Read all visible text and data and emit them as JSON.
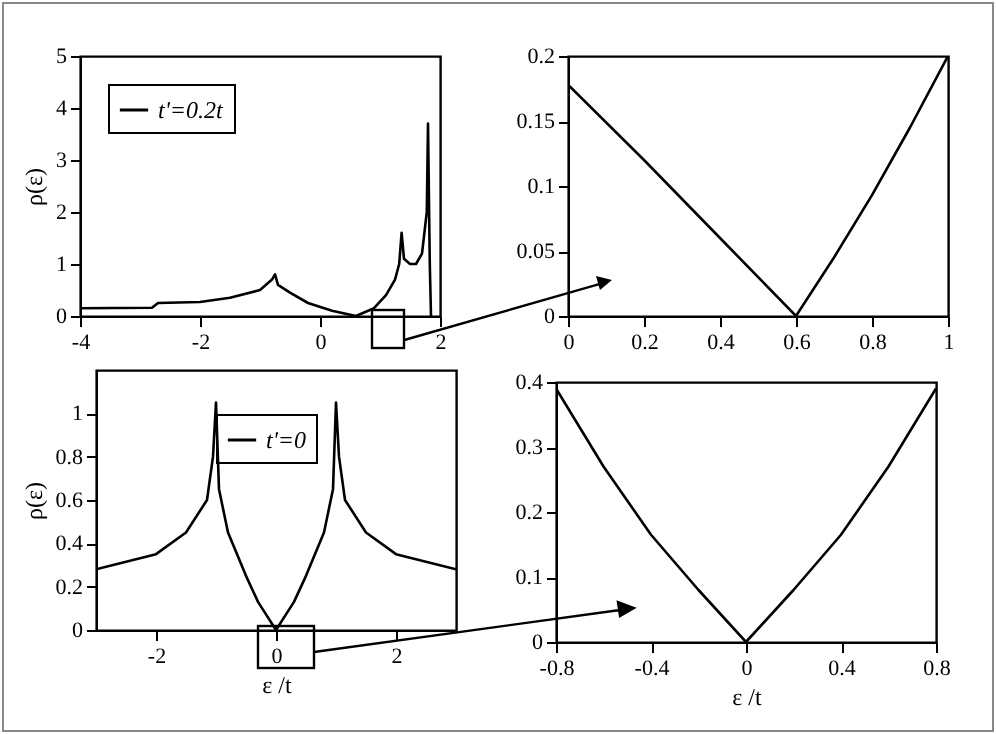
{
  "chart_data": [
    {
      "type": "line",
      "ylabel": "ρ(ε)",
      "xlim": [
        -4,
        2
      ],
      "xticks": [
        -4,
        -2,
        0,
        2
      ],
      "ylim": [
        0,
        5
      ],
      "yticks": [
        0,
        1,
        2,
        3,
        4,
        5
      ],
      "legend": "top left",
      "series": [
        {
          "name": "t'=0.2t",
          "color": "#000000",
          "x": [
            -4,
            -2.8,
            -2.7,
            -2,
            -1.5,
            -1,
            -0.8,
            -0.75,
            -0.7,
            -0.5,
            -0.2,
            0.2,
            0.6,
            0.9,
            1.1,
            1.25,
            1.32,
            1.36,
            1.4,
            1.5,
            1.6,
            1.7,
            1.78,
            1.8,
            1.83,
            1.85
          ],
          "values": [
            0.15,
            0.16,
            0.25,
            0.27,
            0.35,
            0.5,
            0.7,
            0.8,
            0.6,
            0.45,
            0.25,
            0.1,
            0,
            0.15,
            0.4,
            0.7,
            1.0,
            1.6,
            1.1,
            1.0,
            1.0,
            1.2,
            2.0,
            3.7,
            1.0,
            0
          ]
        }
      ]
    },
    {
      "type": "line",
      "xlim": [
        0,
        1
      ],
      "xticks": [
        0,
        0.2,
        0.4,
        0.6,
        0.8,
        1
      ],
      "ylim": [
        0,
        0.2
      ],
      "yticks": [
        0,
        0.05,
        0.1,
        0.15,
        0.2
      ],
      "series": [
        {
          "color": "#000000",
          "x": [
            0,
            0.2,
            0.4,
            0.6,
            0.7,
            0.8,
            0.9,
            1
          ],
          "values": [
            0.178,
            0.12,
            0.06,
            0,
            0.045,
            0.093,
            0.145,
            0.2
          ]
        }
      ]
    },
    {
      "type": "line",
      "xlabel": "ε /t",
      "ylabel": "ρ(ε)",
      "xlim": [
        -3,
        3
      ],
      "xticks": [
        -2,
        0,
        2
      ],
      "ylim": [
        0,
        1.2
      ],
      "yticks": [
        0,
        0.2,
        0.4,
        0.6,
        0.8,
        1
      ],
      "legend": "top",
      "series": [
        {
          "name": "t'=0",
          "color": "#000000",
          "x": [
            -3,
            -2,
            -1.5,
            -1.15,
            -1.05,
            -1,
            -0.95,
            -0.8,
            -0.5,
            -0.3,
            0,
            0.3,
            0.5,
            0.8,
            0.95,
            1,
            1.05,
            1.15,
            1.5,
            2,
            3
          ],
          "values": [
            0.28,
            0.35,
            0.45,
            0.6,
            0.8,
            1.05,
            0.65,
            0.45,
            0.25,
            0.13,
            0,
            0.13,
            0.25,
            0.45,
            0.65,
            1.05,
            0.8,
            0.6,
            0.45,
            0.35,
            0.28
          ]
        }
      ]
    },
    {
      "type": "line",
      "xlabel": "ε /t",
      "xlim": [
        -0.8,
        0.8
      ],
      "xticks": [
        -0.8,
        -0.4,
        0,
        0.4,
        0.8
      ],
      "ylim": [
        0,
        0.4
      ],
      "yticks": [
        0,
        0.1,
        0.2,
        0.3,
        0.4
      ],
      "series": [
        {
          "color": "#000000",
          "x": [
            -0.8,
            -0.6,
            -0.4,
            -0.2,
            0,
            0.2,
            0.4,
            0.6,
            0.8
          ],
          "values": [
            0.39,
            0.27,
            0.165,
            0.08,
            0,
            0.08,
            0.165,
            0.27,
            0.39
          ]
        }
      ]
    }
  ]
}
